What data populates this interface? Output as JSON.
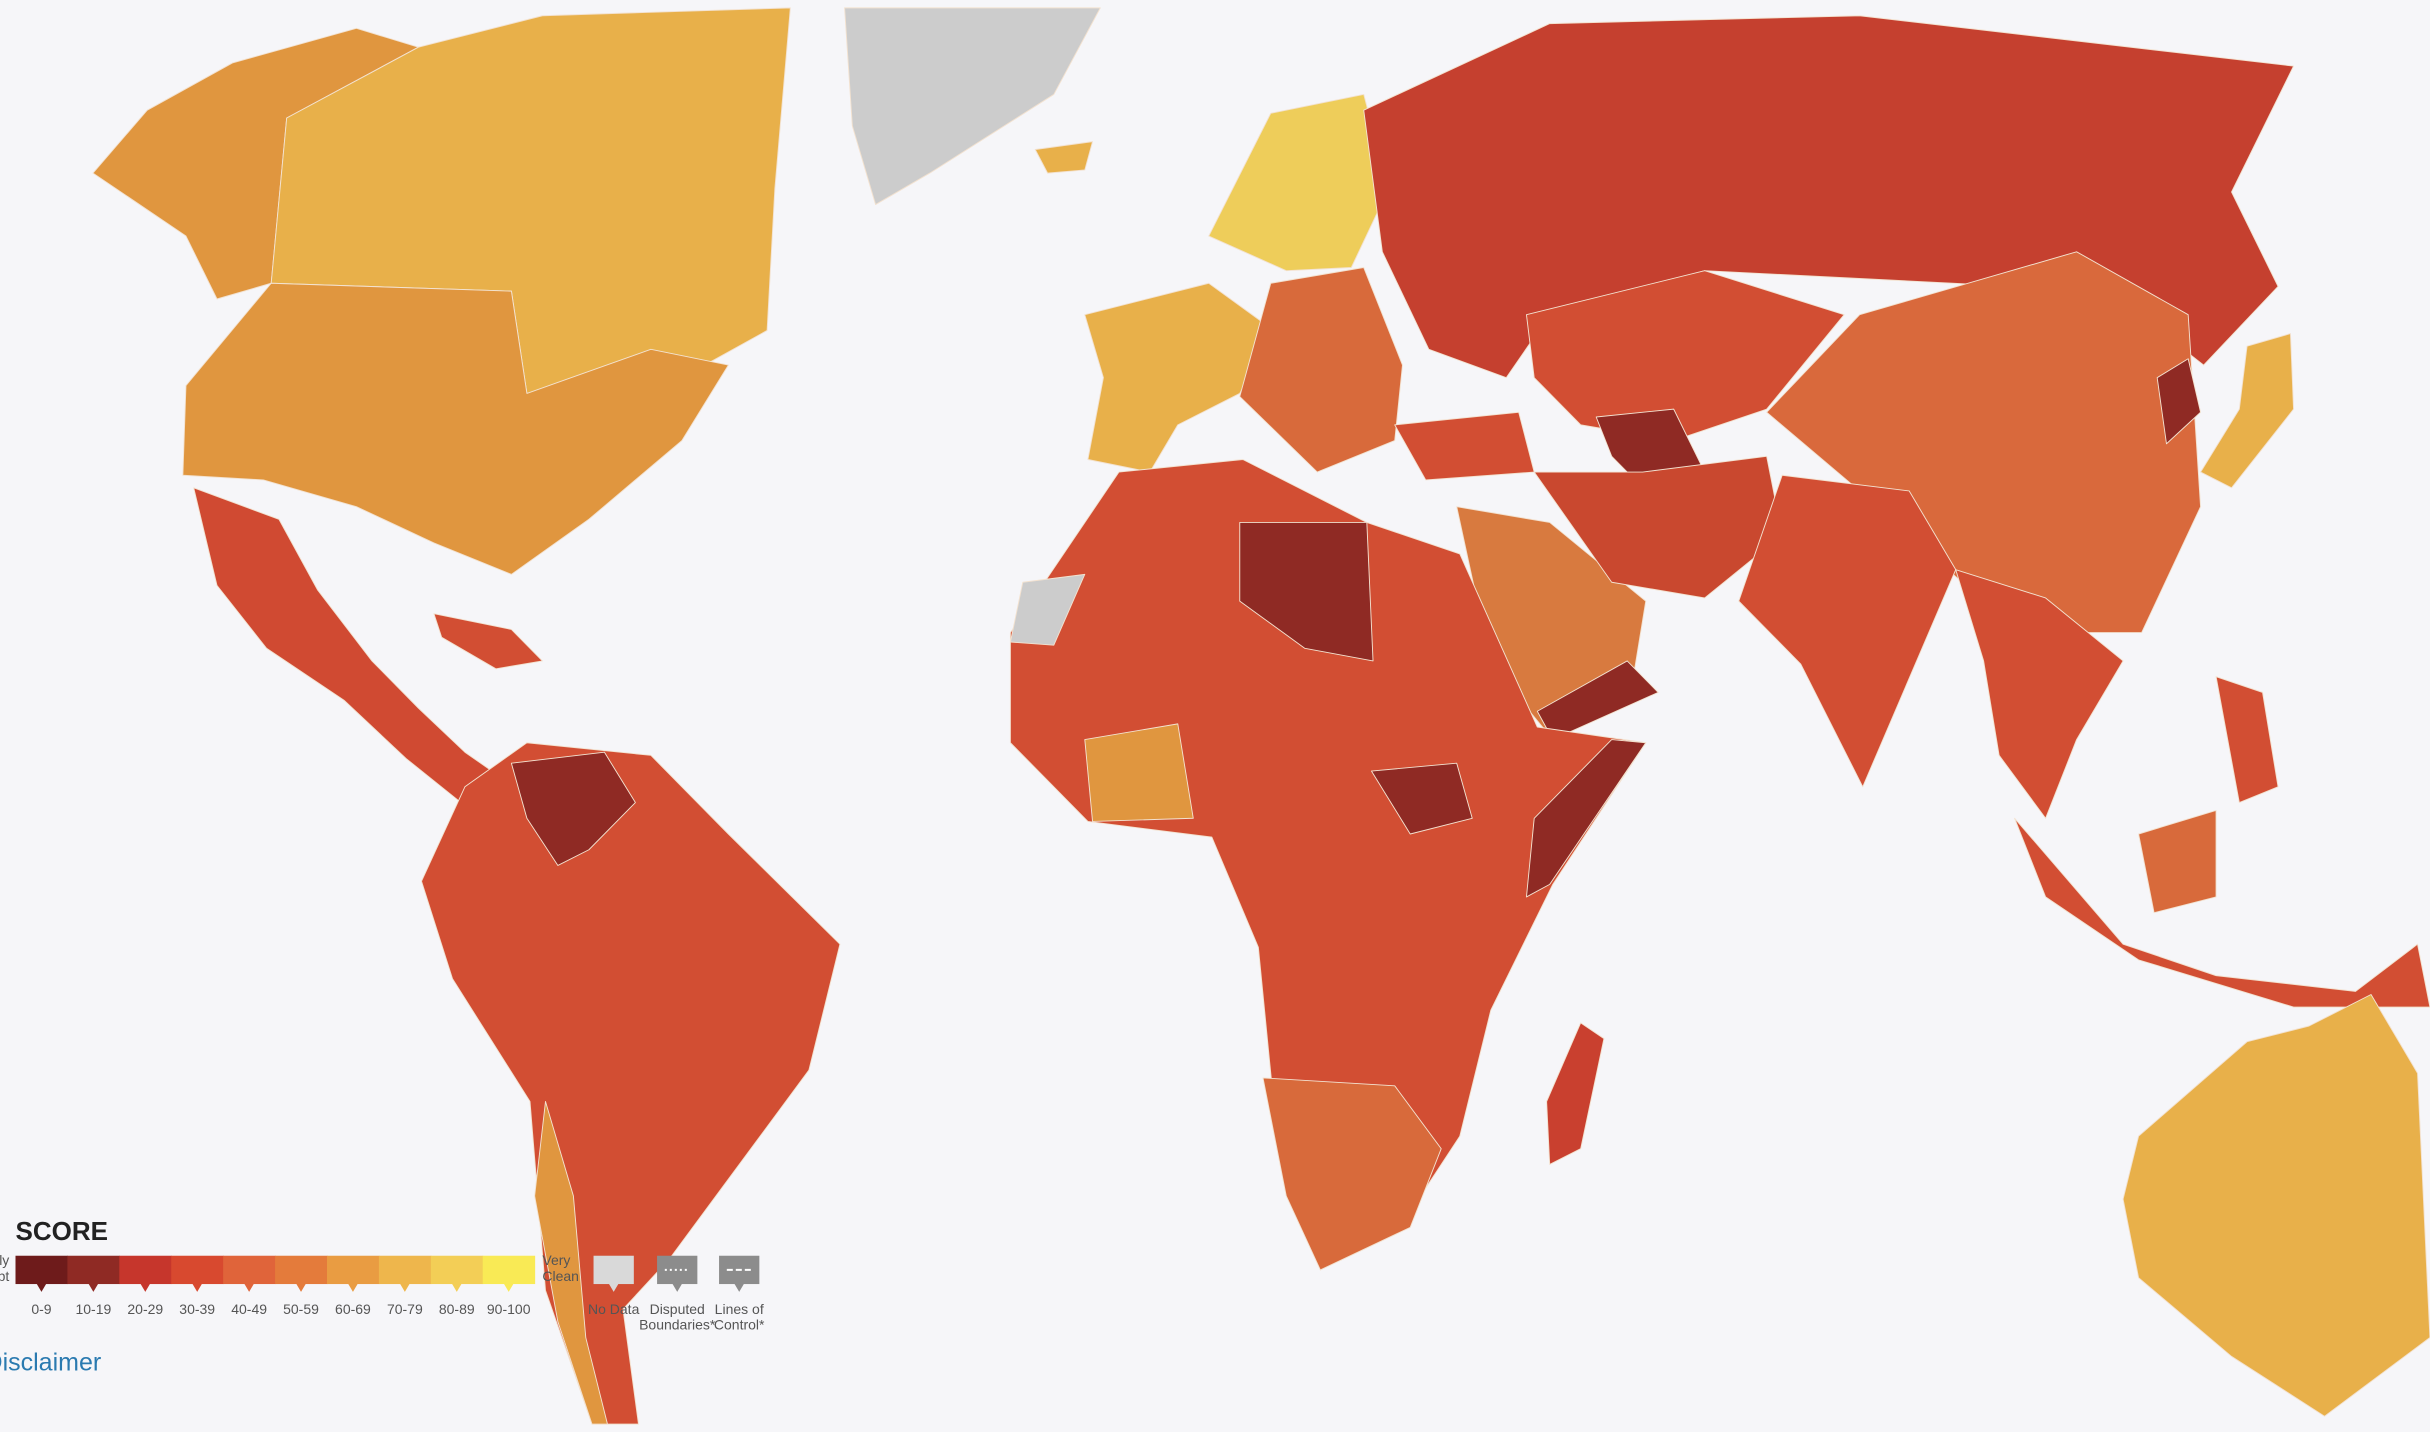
{
  "legend": {
    "title": "SCORE",
    "low_label": [
      "Highly",
      "Corrupt"
    ],
    "high_label": [
      "Very",
      "Clean"
    ],
    "bins": [
      {
        "label": "0-9",
        "color": "#6e1b1b"
      },
      {
        "label": "10-19",
        "color": "#8f2a24"
      },
      {
        "label": "20-29",
        "color": "#c6362c"
      },
      {
        "label": "30-39",
        "color": "#d8492f"
      },
      {
        "label": "40-49",
        "color": "#e0643a"
      },
      {
        "label": "50-59",
        "color": "#e47b3b"
      },
      {
        "label": "60-69",
        "color": "#e99c42"
      },
      {
        "label": "70-79",
        "color": "#eeb64c"
      },
      {
        "label": "80-89",
        "color": "#f3ce56"
      },
      {
        "label": "90-100",
        "color": "#f9ea55"
      }
    ],
    "extras": [
      {
        "lines": [
          "No Data"
        ],
        "color": "#d9d9d9"
      },
      {
        "lines": [
          "Disputed",
          "Boundaries*"
        ],
        "color": "#8c8c8c"
      },
      {
        "lines": [
          "Lines of",
          "Control*"
        ],
        "color": "#8c8c8c"
      }
    ]
  },
  "disclaimer": "Disclaimer"
}
